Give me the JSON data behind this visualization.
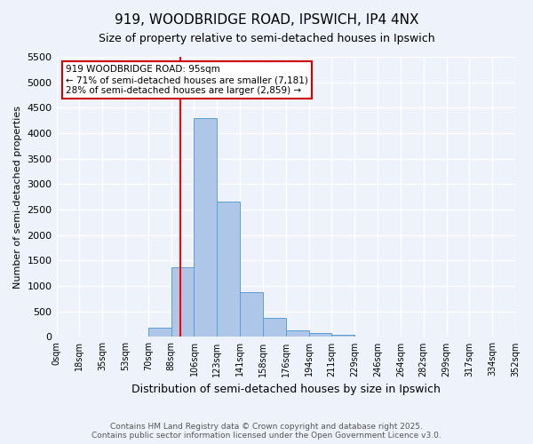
{
  "title1": "919, WOODBRIDGE ROAD, IPSWICH, IP4 4NX",
  "title2": "Size of property relative to semi-detached houses in Ipswich",
  "xlabel": "Distribution of semi-detached houses by size in Ipswich",
  "ylabel": "Number of semi-detached properties",
  "bar_color": "#aec6e8",
  "bar_edge_color": "#5a9fd4",
  "bin_labels": [
    "0sqm",
    "18sqm",
    "35sqm",
    "53sqm",
    "70sqm",
    "88sqm",
    "106sqm",
    "123sqm",
    "141sqm",
    "158sqm",
    "176sqm",
    "194sqm",
    "211sqm",
    "229sqm",
    "246sqm",
    "264sqm",
    "282sqm",
    "299sqm",
    "317sqm",
    "334sqm",
    "352sqm"
  ],
  "bar_heights": [
    0,
    0,
    0,
    0,
    175,
    1375,
    4300,
    2650,
    875,
    375,
    125,
    75,
    50,
    0,
    0,
    0,
    0,
    0,
    0,
    0
  ],
  "ylim": [
    0,
    5500
  ],
  "yticks": [
    0,
    500,
    1000,
    1500,
    2000,
    2500,
    3000,
    3500,
    4000,
    4500,
    5000,
    5500
  ],
  "red_line_x": 5.389,
  "red_line_label": "919 WOODBRIDGE ROAD: 95sqm",
  "annotation_line2": "← 71% of semi-detached houses are smaller (7,181)",
  "annotation_line3": "28% of semi-detached houses are larger (2,859) →",
  "footer_line1": "Contains HM Land Registry data © Crown copyright and database right 2025.",
  "footer_line2": "Contains public sector information licensed under the Open Government Licence v3.0.",
  "background_color": "#eef2fb",
  "grid_color": "#ffffff",
  "annotation_box_color": "#ffffff",
  "annotation_box_edge_color": "#cc0000"
}
